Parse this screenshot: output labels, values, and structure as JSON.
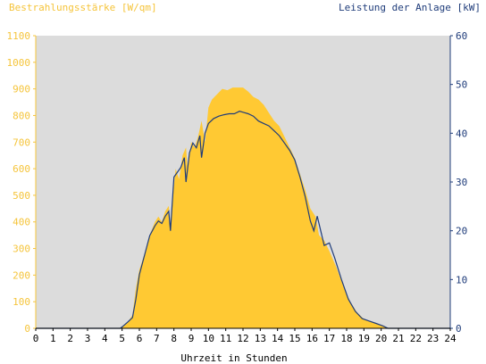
{
  "chart_data": {
    "type": "area",
    "title_left": "Bestrahlungsstärke [W/qm]",
    "title_right": "Leistung der Anlage [kW]",
    "xlabel": "Uhrzeit in Stunden",
    "x_ticks": [
      "0",
      "1",
      "2",
      "3",
      "4",
      "5",
      "6",
      "7",
      "8",
      "9",
      "10",
      "11",
      "12",
      "13",
      "14",
      "15",
      "16",
      "17",
      "18",
      "19",
      "20",
      "21",
      "22",
      "23",
      "24"
    ],
    "y_left_ticks": [
      "0",
      "100",
      "200",
      "300",
      "400",
      "500",
      "600",
      "700",
      "800",
      "900",
      "1000",
      "1100"
    ],
    "y_right_ticks": [
      "0",
      "10",
      "20",
      "30",
      "40",
      "50",
      "60"
    ],
    "xlim": [
      0,
      24
    ],
    "ylim_left": [
      0,
      1100
    ],
    "ylim_right": [
      0,
      60
    ],
    "grid": false,
    "colors": {
      "background": "#dcdcdc",
      "irradiance": "#ffc933",
      "power": "#1f3c7a",
      "left_axis": "#f5c43a",
      "right_axis": "#1f3c7a"
    },
    "series": [
      {
        "name": "Bestrahlungsstärke [W/qm]",
        "axis": "left",
        "type": "area",
        "points": [
          [
            0,
            0
          ],
          [
            4.9,
            0
          ],
          [
            5.0,
            5
          ],
          [
            5.3,
            20
          ],
          [
            5.6,
            50
          ],
          [
            5.8,
            150
          ],
          [
            6.0,
            220
          ],
          [
            6.3,
            280
          ],
          [
            6.6,
            350
          ],
          [
            6.9,
            400
          ],
          [
            7.1,
            420
          ],
          [
            7.3,
            400
          ],
          [
            7.5,
            440
          ],
          [
            7.7,
            460
          ],
          [
            7.8,
            380
          ],
          [
            7.9,
            470
          ],
          [
            8.1,
            600
          ],
          [
            8.3,
            560
          ],
          [
            8.5,
            650
          ],
          [
            8.7,
            680
          ],
          [
            8.8,
            600
          ],
          [
            9.0,
            700
          ],
          [
            9.2,
            680
          ],
          [
            9.4,
            720
          ],
          [
            9.6,
            780
          ],
          [
            9.8,
            700
          ],
          [
            10.0,
            830
          ],
          [
            10.2,
            860
          ],
          [
            10.5,
            880
          ],
          [
            10.8,
            900
          ],
          [
            11.1,
            895
          ],
          [
            11.4,
            905
          ],
          [
            11.7,
            905
          ],
          [
            12.0,
            905
          ],
          [
            12.3,
            890
          ],
          [
            12.6,
            870
          ],
          [
            12.9,
            860
          ],
          [
            13.2,
            840
          ],
          [
            13.5,
            810
          ],
          [
            13.8,
            780
          ],
          [
            14.1,
            760
          ],
          [
            14.4,
            720
          ],
          [
            14.7,
            680
          ],
          [
            15.0,
            640
          ],
          [
            15.3,
            580
          ],
          [
            15.6,
            520
          ],
          [
            15.9,
            450
          ],
          [
            16.2,
            420
          ],
          [
            16.4,
            350
          ],
          [
            16.7,
            330
          ],
          [
            17.0,
            290
          ],
          [
            17.4,
            230
          ],
          [
            17.8,
            160
          ],
          [
            18.2,
            100
          ],
          [
            18.6,
            60
          ],
          [
            19.0,
            35
          ],
          [
            19.4,
            25
          ],
          [
            19.8,
            15
          ],
          [
            20.2,
            5
          ],
          [
            20.4,
            0
          ],
          [
            24,
            0
          ]
        ]
      },
      {
        "name": "Leistung der Anlage [kW]",
        "axis": "right",
        "type": "line",
        "points": [
          [
            0,
            0
          ],
          [
            4.9,
            0
          ],
          [
            5.0,
            0.3
          ],
          [
            5.3,
            1.2
          ],
          [
            5.6,
            2.2
          ],
          [
            5.8,
            6
          ],
          [
            6.0,
            11
          ],
          [
            6.3,
            15
          ],
          [
            6.6,
            19
          ],
          [
            6.9,
            21
          ],
          [
            7.1,
            22
          ],
          [
            7.3,
            21.5
          ],
          [
            7.5,
            23
          ],
          [
            7.7,
            24
          ],
          [
            7.8,
            20
          ],
          [
            8.0,
            31
          ],
          [
            8.2,
            32
          ],
          [
            8.4,
            33
          ],
          [
            8.6,
            35
          ],
          [
            8.7,
            30
          ],
          [
            8.9,
            36
          ],
          [
            9.1,
            38
          ],
          [
            9.3,
            37
          ],
          [
            9.5,
            39.5
          ],
          [
            9.6,
            35
          ],
          [
            9.8,
            40
          ],
          [
            10.0,
            42
          ],
          [
            10.3,
            43
          ],
          [
            10.6,
            43.5
          ],
          [
            10.9,
            43.8
          ],
          [
            11.2,
            44
          ],
          [
            11.5,
            44
          ],
          [
            11.8,
            44.5
          ],
          [
            12.0,
            44.3
          ],
          [
            12.3,
            44
          ],
          [
            12.6,
            43.5
          ],
          [
            12.9,
            42.5
          ],
          [
            13.2,
            42
          ],
          [
            13.5,
            41.5
          ],
          [
            13.8,
            40.5
          ],
          [
            14.1,
            39.5
          ],
          [
            14.4,
            38
          ],
          [
            14.7,
            36.5
          ],
          [
            15.0,
            34.5
          ],
          [
            15.3,
            31
          ],
          [
            15.6,
            27
          ],
          [
            15.9,
            22
          ],
          [
            16.1,
            20
          ],
          [
            16.3,
            23
          ],
          [
            16.5,
            20
          ],
          [
            16.7,
            17
          ],
          [
            17.0,
            17.5
          ],
          [
            17.3,
            14.5
          ],
          [
            17.7,
            10
          ],
          [
            18.1,
            6
          ],
          [
            18.5,
            3.5
          ],
          [
            18.9,
            2
          ],
          [
            19.3,
            1.5
          ],
          [
            19.7,
            1
          ],
          [
            20.1,
            0.5
          ],
          [
            20.4,
            0
          ],
          [
            24,
            0
          ]
        ]
      }
    ]
  }
}
